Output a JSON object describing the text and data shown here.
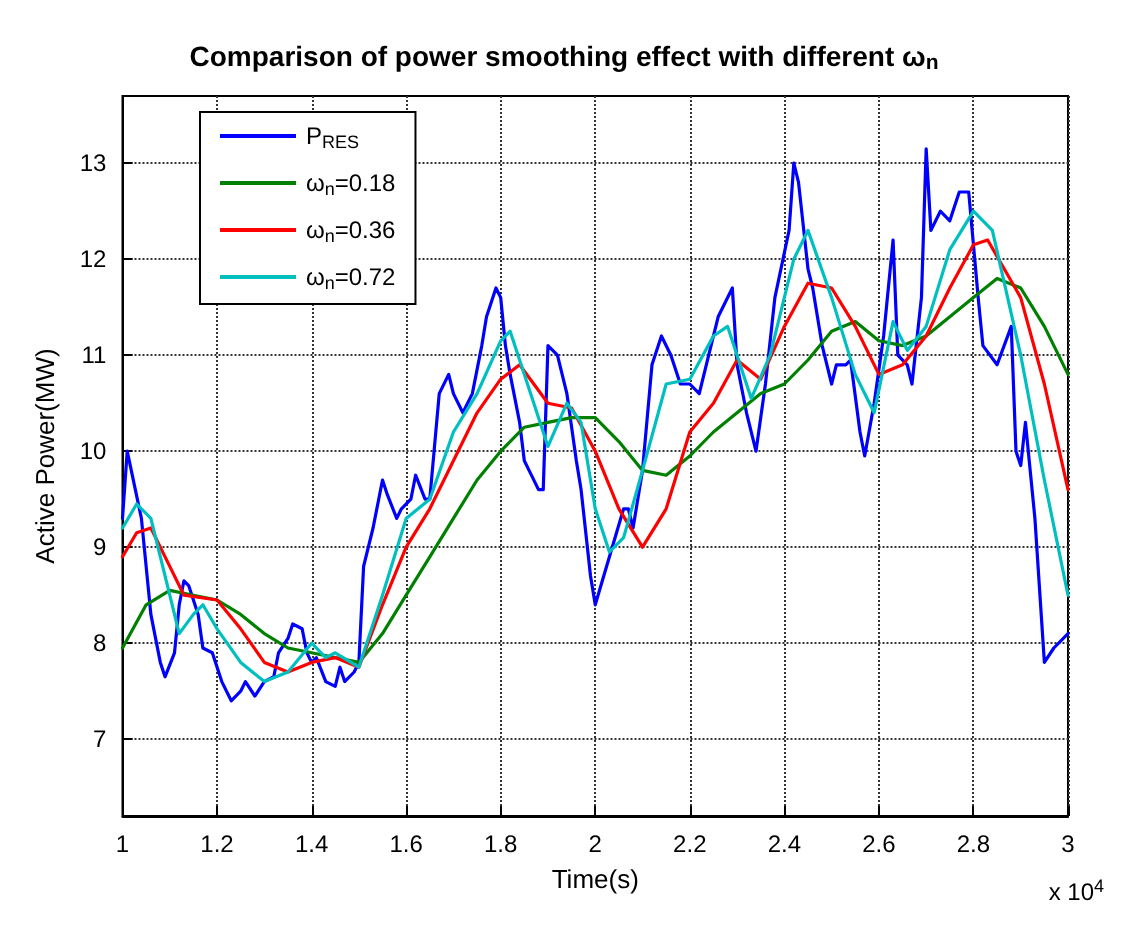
{
  "chart_data": {
    "type": "line",
    "title": "Comparison of power smoothing effect with different ω$_{n}$",
    "xlabel": "Time(s)",
    "ylabel": "Active Power(MW)",
    "annotations": [
      "x 10$^{4}$"
    ],
    "xlim": [
      1,
      3
    ],
    "xticks": [
      1,
      1.2,
      1.4,
      1.6,
      1.8,
      2,
      2.2,
      2.4,
      2.6,
      2.8,
      3
    ],
    "ylim": [
      6.2,
      13.7
    ],
    "yticks": [
      7,
      8,
      9,
      10,
      11,
      12,
      13
    ],
    "grid": true,
    "legend": "top left",
    "marker": "none",
    "line_style": "solid",
    "series": [
      {
        "name": "P$_{RES}$",
        "color": "#0000ff",
        "x": [
          1.0,
          1.01,
          1.04,
          1.06,
          1.08,
          1.09,
          1.11,
          1.12,
          1.13,
          1.14,
          1.16,
          1.17,
          1.19,
          1.21,
          1.23,
          1.25,
          1.26,
          1.28,
          1.3,
          1.32,
          1.33,
          1.35,
          1.36,
          1.38,
          1.39,
          1.4,
          1.41,
          1.43,
          1.45,
          1.46,
          1.47,
          1.49,
          1.5,
          1.51,
          1.53,
          1.55,
          1.56,
          1.58,
          1.59,
          1.61,
          1.62,
          1.64,
          1.65,
          1.67,
          1.69,
          1.7,
          1.72,
          1.74,
          1.76,
          1.77,
          1.79,
          1.8,
          1.81,
          1.82,
          1.84,
          1.85,
          1.86,
          1.88,
          1.89,
          1.9,
          1.92,
          1.94,
          1.96,
          1.97,
          1.99,
          2.0,
          2.03,
          2.06,
          2.07,
          2.08,
          2.1,
          2.12,
          2.14,
          2.16,
          2.18,
          2.2,
          2.22,
          2.24,
          2.26,
          2.29,
          2.3,
          2.32,
          2.34,
          2.36,
          2.38,
          2.41,
          2.42,
          2.43,
          2.45,
          2.46,
          2.48,
          2.5,
          2.51,
          2.53,
          2.54,
          2.56,
          2.57,
          2.59,
          2.61,
          2.63,
          2.64,
          2.66,
          2.67,
          2.69,
          2.7,
          2.71,
          2.73,
          2.75,
          2.77,
          2.79,
          2.81,
          2.82,
          2.85,
          2.88,
          2.89,
          2.9,
          2.91,
          2.93,
          2.95,
          2.97,
          3.0
        ],
        "values": [
          9.3,
          10.0,
          9.3,
          8.3,
          7.8,
          7.65,
          7.9,
          8.4,
          8.65,
          8.6,
          8.3,
          7.95,
          7.9,
          7.6,
          7.4,
          7.5,
          7.6,
          7.45,
          7.6,
          7.65,
          7.9,
          8.05,
          8.2,
          8.15,
          7.9,
          7.8,
          7.85,
          7.6,
          7.55,
          7.75,
          7.6,
          7.7,
          7.8,
          8.8,
          9.2,
          9.7,
          9.55,
          9.3,
          9.4,
          9.5,
          9.75,
          9.5,
          9.5,
          10.6,
          10.8,
          10.6,
          10.4,
          10.6,
          11.1,
          11.4,
          11.7,
          11.6,
          11.1,
          10.8,
          10.3,
          9.9,
          9.8,
          9.6,
          9.6,
          11.1,
          11.0,
          10.6,
          9.9,
          9.6,
          8.7,
          8.4,
          8.9,
          9.4,
          9.4,
          9.2,
          9.8,
          10.9,
          11.2,
          11.0,
          10.7,
          10.7,
          10.6,
          11.0,
          11.4,
          11.7,
          10.9,
          10.4,
          10.0,
          10.7,
          11.6,
          12.3,
          13.0,
          12.8,
          11.9,
          11.7,
          11.1,
          10.7,
          10.9,
          10.9,
          10.95,
          10.2,
          9.95,
          10.5,
          11.2,
          12.2,
          11.0,
          10.9,
          10.7,
          11.6,
          13.15,
          12.3,
          12.5,
          12.4,
          12.7,
          12.7,
          11.6,
          11.1,
          10.9,
          11.3,
          10.0,
          9.85,
          10.3,
          9.3,
          7.8,
          7.95,
          8.1
        ]
      },
      {
        "name": "ω$_{n}$=0.18",
        "color": "#008000",
        "x": [
          1.0,
          1.05,
          1.1,
          1.15,
          1.2,
          1.25,
          1.3,
          1.35,
          1.4,
          1.45,
          1.5,
          1.55,
          1.6,
          1.65,
          1.7,
          1.75,
          1.8,
          1.85,
          1.9,
          1.95,
          2.0,
          2.05,
          2.1,
          2.15,
          2.2,
          2.25,
          2.3,
          2.35,
          2.4,
          2.45,
          2.5,
          2.55,
          2.6,
          2.65,
          2.7,
          2.75,
          2.8,
          2.85,
          2.9,
          2.95,
          3.0
        ],
        "values": [
          7.95,
          8.4,
          8.55,
          8.5,
          8.45,
          8.3,
          8.1,
          7.95,
          7.9,
          7.85,
          7.8,
          8.1,
          8.5,
          8.9,
          9.3,
          9.7,
          10.0,
          10.25,
          10.3,
          10.35,
          10.35,
          10.1,
          9.8,
          9.75,
          9.95,
          10.2,
          10.4,
          10.6,
          10.7,
          10.95,
          11.25,
          11.35,
          11.15,
          11.1,
          11.2,
          11.4,
          11.6,
          11.8,
          11.7,
          11.3,
          10.8
        ]
      },
      {
        "name": "ω$_{n}$=0.36",
        "color": "#ff0000",
        "x": [
          1.0,
          1.03,
          1.06,
          1.1,
          1.13,
          1.2,
          1.25,
          1.3,
          1.35,
          1.4,
          1.45,
          1.5,
          1.55,
          1.6,
          1.65,
          1.7,
          1.75,
          1.8,
          1.84,
          1.9,
          1.95,
          2.0,
          2.05,
          2.1,
          2.15,
          2.2,
          2.25,
          2.3,
          2.35,
          2.4,
          2.45,
          2.5,
          2.55,
          2.6,
          2.65,
          2.7,
          2.75,
          2.8,
          2.83,
          2.9,
          2.95,
          3.0
        ],
        "values": [
          8.9,
          9.15,
          9.2,
          8.8,
          8.5,
          8.45,
          8.15,
          7.8,
          7.7,
          7.8,
          7.85,
          7.75,
          8.4,
          9.0,
          9.4,
          9.9,
          10.4,
          10.75,
          10.9,
          10.5,
          10.45,
          10.0,
          9.4,
          9.0,
          9.4,
          10.2,
          10.5,
          10.95,
          10.75,
          11.3,
          11.75,
          11.7,
          11.3,
          10.8,
          10.9,
          11.2,
          11.7,
          12.15,
          12.2,
          11.6,
          10.7,
          9.6
        ]
      },
      {
        "name": "ω$_{n}$=0.72",
        "color": "#00bfbf",
        "x": [
          1.0,
          1.03,
          1.06,
          1.1,
          1.12,
          1.15,
          1.17,
          1.2,
          1.25,
          1.3,
          1.35,
          1.4,
          1.43,
          1.45,
          1.5,
          1.55,
          1.6,
          1.65,
          1.7,
          1.75,
          1.8,
          1.82,
          1.87,
          1.9,
          1.94,
          1.97,
          2.0,
          2.03,
          2.06,
          2.1,
          2.15,
          2.2,
          2.25,
          2.28,
          2.33,
          2.37,
          2.42,
          2.45,
          2.5,
          2.55,
          2.59,
          2.63,
          2.66,
          2.7,
          2.75,
          2.8,
          2.84,
          2.9,
          2.95,
          3.0
        ],
        "values": [
          9.2,
          9.45,
          9.3,
          8.5,
          8.1,
          8.3,
          8.4,
          8.15,
          7.8,
          7.6,
          7.7,
          8.0,
          7.85,
          7.9,
          7.75,
          8.5,
          9.3,
          9.5,
          10.2,
          10.6,
          11.15,
          11.25,
          10.5,
          10.05,
          10.5,
          10.3,
          9.4,
          8.95,
          9.1,
          9.8,
          10.7,
          10.75,
          11.2,
          11.3,
          10.55,
          11.0,
          12.0,
          12.3,
          11.6,
          10.8,
          10.4,
          11.35,
          11.05,
          11.3,
          12.1,
          12.5,
          12.3,
          11.0,
          9.7,
          8.5
        ]
      }
    ]
  }
}
